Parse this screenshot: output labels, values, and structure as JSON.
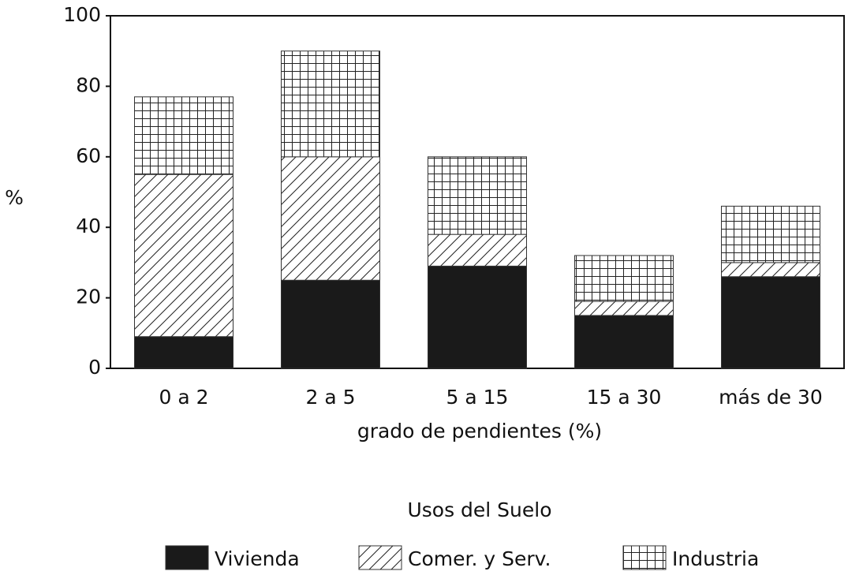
{
  "chart_data": {
    "type": "stacked_bar",
    "categories": [
      "0 a 2",
      "2 a 5",
      "5 a 15",
      "15 a 30",
      "más de 30"
    ],
    "series": [
      {
        "name": "Vivienda",
        "color": "#1a1a1a",
        "pattern": "solid",
        "values": [
          9,
          25,
          29,
          15,
          26
        ]
      },
      {
        "name": "Comer. y Serv.",
        "color": "#222222",
        "pattern": "diagonal",
        "values": [
          46,
          35,
          9,
          4,
          4
        ]
      },
      {
        "name": "Industria",
        "color": "#222222",
        "pattern": "grid",
        "values": [
          22,
          30,
          22,
          13,
          16
        ]
      }
    ],
    "ylabel": "%",
    "xlabel": "grado de pendientes (%)",
    "legend_title": "Usos del Suelo",
    "ylim": [
      0,
      100
    ],
    "yticks": [
      0,
      20,
      40,
      60,
      80,
      100
    ],
    "grid": false,
    "legend": "bottom"
  }
}
